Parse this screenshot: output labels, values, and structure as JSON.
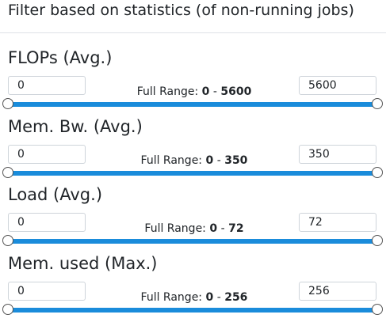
{
  "header": {
    "title": "Filter based on statistics (of non-running jobs)"
  },
  "range_prefix": "Full Range:",
  "range_separator": "-",
  "colors": {
    "accent": "#1a8cdb",
    "divider": "#dee2e6"
  },
  "filters": [
    {
      "label": "FLOPs (Avg.)",
      "min_value": "0",
      "max_value": "5600",
      "range_min": "0",
      "range_max": "5600",
      "selected_min": 0,
      "selected_max": 5600
    },
    {
      "label": "Mem. Bw. (Avg.)",
      "min_value": "0",
      "max_value": "350",
      "range_min": "0",
      "range_max": "350",
      "selected_min": 0,
      "selected_max": 350
    },
    {
      "label": "Load (Avg.)",
      "min_value": "0",
      "max_value": "72",
      "range_min": "0",
      "range_max": "72",
      "selected_min": 0,
      "selected_max": 72
    },
    {
      "label": "Mem. used (Max.)",
      "min_value": "0",
      "max_value": "256",
      "range_min": "0",
      "range_max": "256",
      "selected_min": 0,
      "selected_max": 256
    }
  ]
}
